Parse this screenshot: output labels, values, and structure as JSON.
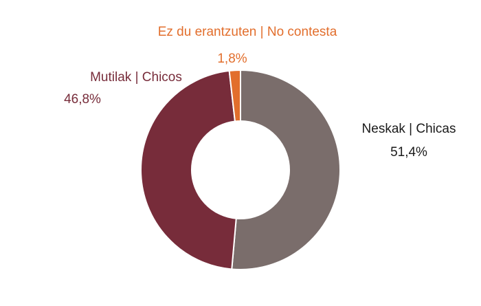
{
  "chart_data": {
    "type": "pie",
    "donut": true,
    "legend": "none",
    "slices": [
      {
        "name": "Neskak | Chicas",
        "value": 51.4,
        "label": "51,4%",
        "color": "#7a6d6b"
      },
      {
        "name": "Mutilak | Chicos",
        "value": 46.8,
        "label": "46,8%",
        "color": "#772c3a"
      },
      {
        "name": "Ez du erantzuten | No contesta",
        "value": 1.8,
        "label": "1,8%",
        "color": "#e26e2c"
      }
    ]
  },
  "colors": {
    "neskak_text": "#1a1a1a",
    "mutilak_text": "#772c3a",
    "nocontesta_text": "#e26e2c"
  }
}
